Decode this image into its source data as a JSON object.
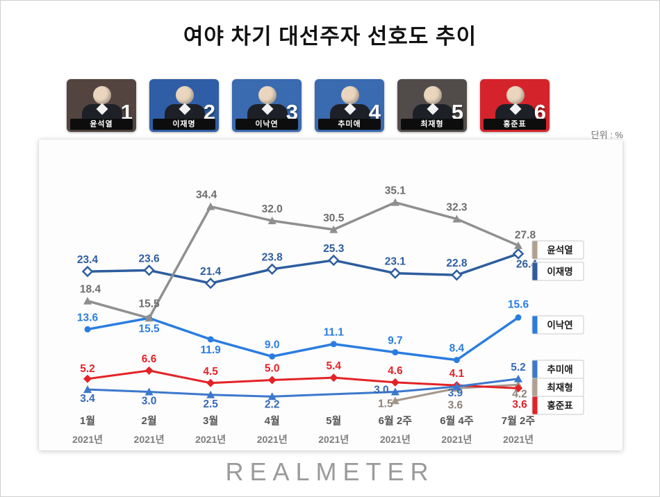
{
  "title": "여야 차기 대선주자 선호도 추이",
  "unit_label": "단위 : %",
  "footer_logo": "REALMETER",
  "candidates": [
    {
      "rank": "1",
      "name": "윤석열",
      "bg": "#53443f"
    },
    {
      "rank": "2",
      "name": "이재명",
      "bg": "#2f5ea6"
    },
    {
      "rank": "3",
      "name": "이낙연",
      "bg": "#3a6ab0"
    },
    {
      "rank": "4",
      "name": "추미애",
      "bg": "#3a6ab0"
    },
    {
      "rank": "5",
      "name": "최재형",
      "bg": "#514c4a"
    },
    {
      "rank": "6",
      "name": "홍준표",
      "bg": "#d5232b"
    }
  ],
  "chart_data": {
    "type": "line",
    "title": "여야 차기 대선주자 선호도 추이",
    "unit": "%",
    "ylim": [
      0,
      40
    ],
    "grid": false,
    "legend_position": "right",
    "categories": [
      {
        "label": "1월",
        "year": "2021년"
      },
      {
        "label": "2월",
        "year": "2021년"
      },
      {
        "label": "3월",
        "year": "2021년"
      },
      {
        "label": "4월",
        "year": "2021년"
      },
      {
        "label": "5월",
        "year": "2021년"
      },
      {
        "label": "6월 2주",
        "year": "2021년"
      },
      {
        "label": "6월 4주",
        "year": "2021년"
      },
      {
        "label": "7월 2주",
        "year": "2021년"
      }
    ],
    "series": [
      {
        "id": "yoon-suk-yeol",
        "name": "윤석열",
        "color": "#8f8f8f",
        "legend_color": "#b1a090",
        "marker": "triangle",
        "label_color": "#6d6d6d",
        "values": [
          18.4,
          15.5,
          34.4,
          32.0,
          30.5,
          35.1,
          32.3,
          27.8
        ]
      },
      {
        "id": "lee-jae-myung",
        "name": "이재명",
        "color": "#2d5d9e",
        "legend_color": "#2d5d9e",
        "marker": "diamond-hollow",
        "label_color": "#2d5d9e",
        "values": [
          23.4,
          23.6,
          21.4,
          23.8,
          25.3,
          23.1,
          22.8,
          26.4
        ]
      },
      {
        "id": "lee-nak-yeon",
        "name": "이낙연",
        "color": "#2a7de0",
        "legend_color": "#2a7de0",
        "marker": "circle",
        "label_color": "#2a7de0",
        "values": [
          13.6,
          15.5,
          11.9,
          9.0,
          11.1,
          9.7,
          8.4,
          15.6
        ]
      },
      {
        "id": "choo-mi-ae",
        "name": "추미애",
        "color": "#3c78cc",
        "legend_color": "#3c78cc",
        "marker": "triangle",
        "label_color": "#3568b8",
        "values": [
          3.4,
          3.0,
          2.5,
          2.2,
          null,
          3.0,
          3.9,
          5.2
        ]
      },
      {
        "id": "choi-jae-hyung",
        "name": "최재형",
        "color": "#a5968a",
        "legend_color": "#b1a090",
        "marker": "triangle",
        "label_color": "#8d8176",
        "values": [
          null,
          null,
          null,
          null,
          null,
          1.5,
          3.6,
          4.2
        ]
      },
      {
        "id": "hong-jun-pyo",
        "name": "홍준표",
        "color": "#e32227",
        "legend_color": "#e32227",
        "marker": "diamond",
        "label_color": "#e32227",
        "values": [
          5.2,
          6.6,
          4.5,
          5.0,
          5.4,
          4.6,
          4.1,
          3.6
        ]
      }
    ]
  }
}
